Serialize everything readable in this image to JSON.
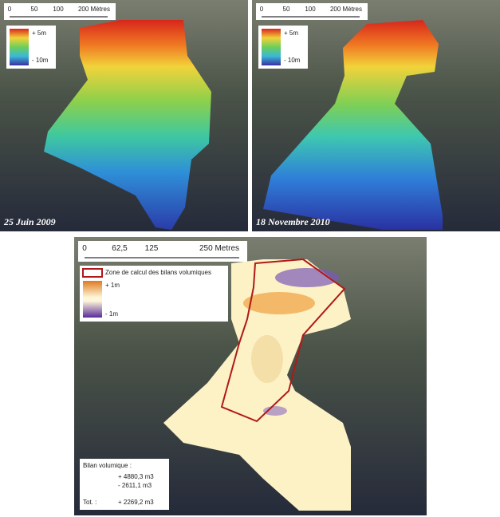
{
  "panels": [
    {
      "scale": [
        "0",
        "50",
        "100",
        "200 Mètres"
      ],
      "legend": [
        "+ 5m",
        "- 10m"
      ],
      "date": "25 Juin 2009"
    },
    {
      "scale": [
        "0",
        "50",
        "100",
        "200 Mètres"
      ],
      "legend": [
        "+ 5m",
        "- 10m"
      ],
      "date": "18 Novembre 2010"
    },
    {
      "scale": [
        "0",
        "62,5",
        "125",
        "250 Metres"
      ],
      "legend": {
        "zone": "Zone de calcul des bilans volumiques",
        "high": "+ 1m",
        "low": "- 1m"
      },
      "summary": {
        "title": "Bilan volumique :",
        "gain": "+ 4880,3 m3",
        "loss": "- 2611,1 m3",
        "total_label": "Tot. :",
        "total": "+ 2269,2 m3"
      }
    }
  ]
}
